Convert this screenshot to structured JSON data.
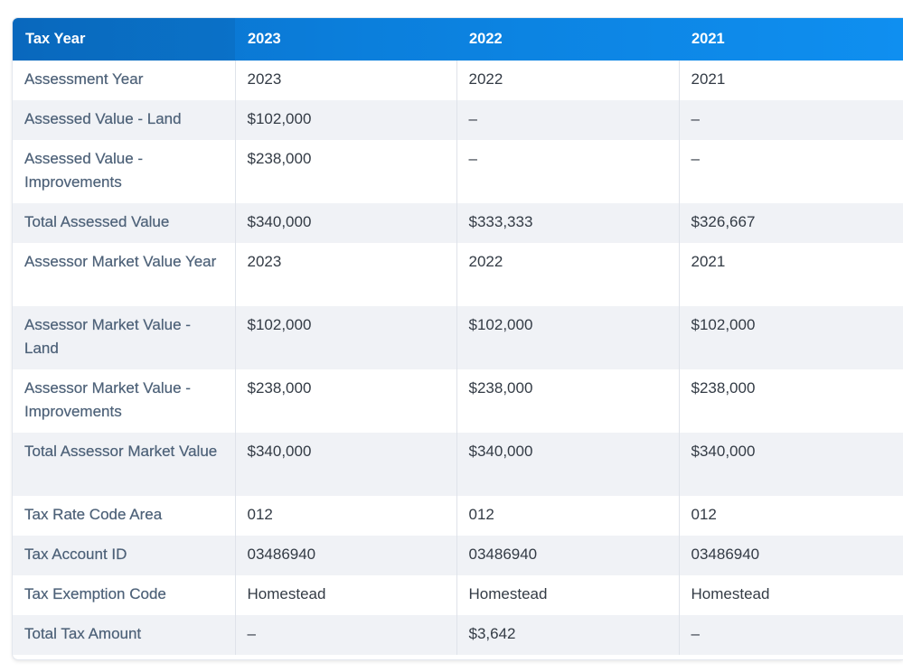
{
  "header": {
    "label": "Tax Year",
    "years": [
      "2023",
      "2022",
      "2021"
    ]
  },
  "rows": [
    {
      "label": "Assessment Year",
      "values": [
        "2023",
        "2022",
        "2021"
      ]
    },
    {
      "label": "Assessed Value - Land",
      "values": [
        "$102,000",
        "–",
        "–"
      ]
    },
    {
      "label": "Assessed Value - Improvements",
      "values": [
        "$238,000",
        "–",
        "–"
      ]
    },
    {
      "label": "Total Assessed Value",
      "values": [
        "$340,000",
        "$333,333",
        "$326,667"
      ]
    },
    {
      "label": "Assessor Market Value Year",
      "values": [
        "2023",
        "2022",
        "2021"
      ]
    },
    {
      "label": "Assessor Market Value - Land",
      "values": [
        "$102,000",
        "$102,000",
        "$102,000"
      ]
    },
    {
      "label": "Assessor Market Value - Improvements",
      "values": [
        "$238,000",
        "$238,000",
        "$238,000"
      ]
    },
    {
      "label": "Total Assessor Market Value",
      "values": [
        "$340,000",
        "$340,000",
        "$340,000"
      ]
    },
    {
      "label": "Tax Rate Code Area",
      "values": [
        "012",
        "012",
        "012"
      ]
    },
    {
      "label": "Tax Account ID",
      "values": [
        "03486940",
        "03486940",
        "03486940"
      ]
    },
    {
      "label": "Tax Exemption Code",
      "values": [
        "Homestead",
        "Homestead",
        "Homestead"
      ]
    },
    {
      "label": "Total Tax Amount",
      "values": [
        "–",
        "$3,642",
        "–"
      ]
    }
  ]
}
